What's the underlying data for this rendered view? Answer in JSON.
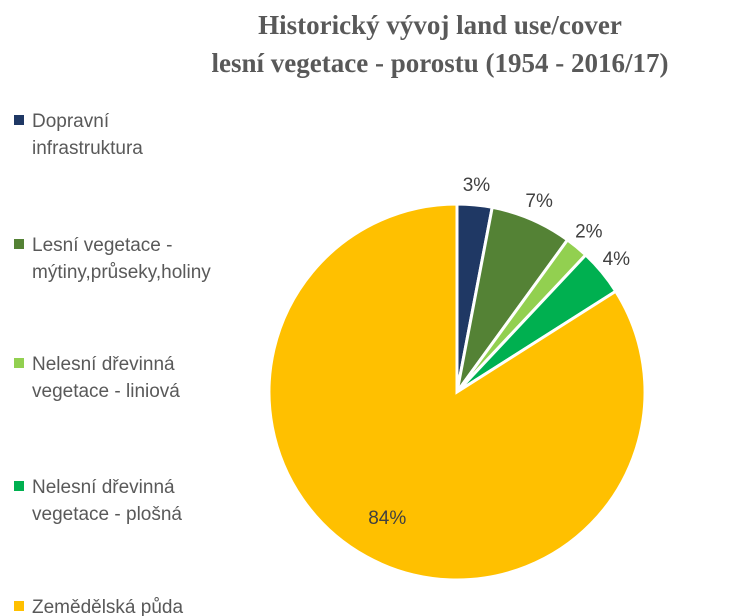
{
  "chart_data": {
    "type": "pie",
    "title": [
      "Historický vývoj land use/cover",
      "lesní vegetace - porostu (1954 - 2016/17)"
    ],
    "categories": [
      "Dopravní infrastruktura",
      "Lesní vegetace - mýtiny,průseky,holiny",
      "Nelesní dřevinná vegetace - liniová",
      "Nelesní dřevinná vegetace - plošná",
      "Zemědělská půda"
    ],
    "values": [
      3,
      7,
      2,
      4,
      84
    ],
    "value_labels": [
      "3%",
      "7%",
      "2%",
      "4%",
      "84%"
    ],
    "colors": [
      "#1f3864",
      "#548235",
      "#92d050",
      "#00b050",
      "#ffc000"
    ],
    "legend": "left"
  }
}
